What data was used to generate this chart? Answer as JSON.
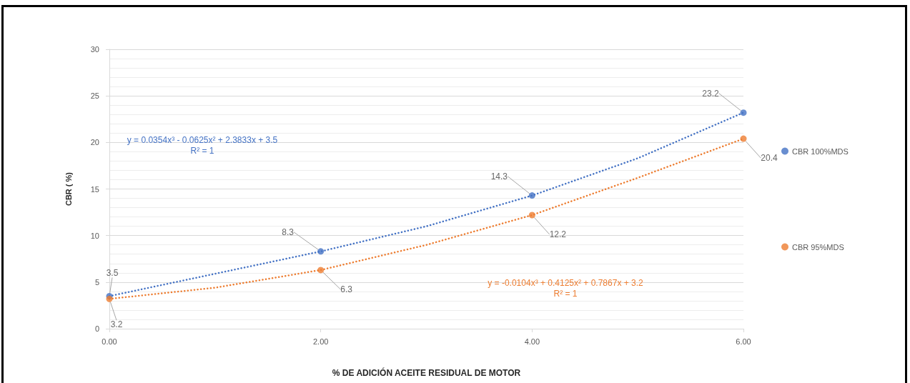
{
  "chart_data": {
    "type": "scatter",
    "xlabel": "% DE ADICIÓN ACEITE RESIDUAL DE MOTOR",
    "ylabel": "CBR ( %)",
    "x": [
      0,
      2,
      4,
      6
    ],
    "series": [
      {
        "type": "line",
        "color": "#4472c4",
        "x": [
          0,
          1,
          2,
          3,
          4,
          5,
          6
        ],
        "values": [
          3.5,
          5.9,
          8.3,
          11.0,
          14.3,
          18.3,
          23.2
        ],
        "marker": "none",
        "line_style": "dotted"
      },
      {
        "type": "line",
        "color": "#ed7d31",
        "x": [
          0,
          1,
          2,
          3,
          4,
          5,
          6
        ],
        "values": [
          3.2,
          4.4,
          6.3,
          9.0,
          12.2,
          16.2,
          20.4
        ],
        "marker": "none",
        "line_style": "dotted"
      },
      {
        "name": "CBR 100%MDS",
        "color": "#4472c4",
        "values": [
          3.5,
          8.3,
          14.3,
          23.2
        ],
        "value_labels": [
          "3.5",
          "8.3",
          "14.3",
          "23.2"
        ]
      },
      {
        "name": "CBR 95%MDS",
        "color": "#ed7d31",
        "values": [
          3.2,
          6.3,
          12.2,
          20.4
        ],
        "value_labels": [
          "3.2",
          "6.3",
          "12.2",
          "20.4"
        ]
      }
    ],
    "annotations": [
      "y = 0.0354x³ - 0.0625x² + 2.3833x + 3.5\nR² = 1",
      "y = -0.0104x³ + 0.4125x² + 0.7867x + 3.2\nR² = 1"
    ],
    "xlim": [
      0,
      6
    ],
    "xticks": [
      {
        "value": 0,
        "label": "0.00"
      },
      {
        "value": 2,
        "label": "2.00"
      },
      {
        "value": 4,
        "label": "4.00"
      },
      {
        "value": 6,
        "label": "6.00"
      }
    ],
    "ylim": [
      0,
      30
    ],
    "yticks": [
      0,
      5,
      10,
      15,
      20,
      25,
      30
    ],
    "grid": "y",
    "legend": "right",
    "marker": "circle"
  }
}
